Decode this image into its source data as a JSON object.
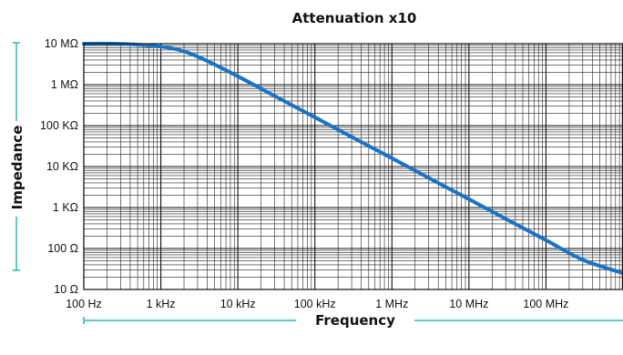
{
  "chart_data": {
    "type": "line",
    "title": "Attenuation x10",
    "xlabel": "Frequency",
    "ylabel": "Impedance",
    "x_scale": "log",
    "y_scale": "log",
    "xlim": [
      100,
      1000000000
    ],
    "ylim": [
      10,
      10000000
    ],
    "x_tick_values": [
      100,
      1000,
      10000,
      100000,
      1000000,
      10000000,
      100000000
    ],
    "x_tick_labels": [
      "100 Hz",
      "1 kHz",
      "10 kHz",
      "100 kHz",
      "1 MHz",
      "10 MHz",
      "100 MHz"
    ],
    "y_tick_values": [
      10000000,
      1000000,
      100000,
      10000,
      1000,
      100,
      10
    ],
    "y_tick_labels": [
      "10 MΩ",
      "1 MΩ",
      "100 KΩ",
      "10 KΩ",
      "1 KΩ",
      "100 Ω",
      "10 Ω"
    ],
    "grid": true,
    "series": [
      {
        "color": "#1a73c4",
        "x": [
          100,
          300,
          1000,
          2000,
          4000,
          10000,
          30000,
          100000,
          300000,
          1000000,
          3000000,
          10000000,
          30000000,
          100000000,
          300000000,
          1000000000
        ],
        "y": [
          10000000,
          9900000,
          8500000,
          6500000,
          3800000,
          1600000,
          530000,
          160000,
          53000,
          16000,
          5300,
          1600,
          530,
          160,
          53,
          25
        ]
      }
    ]
  },
  "colors": {
    "curve": "#1a73c4",
    "accent_lines": "#2ab8b8"
  }
}
